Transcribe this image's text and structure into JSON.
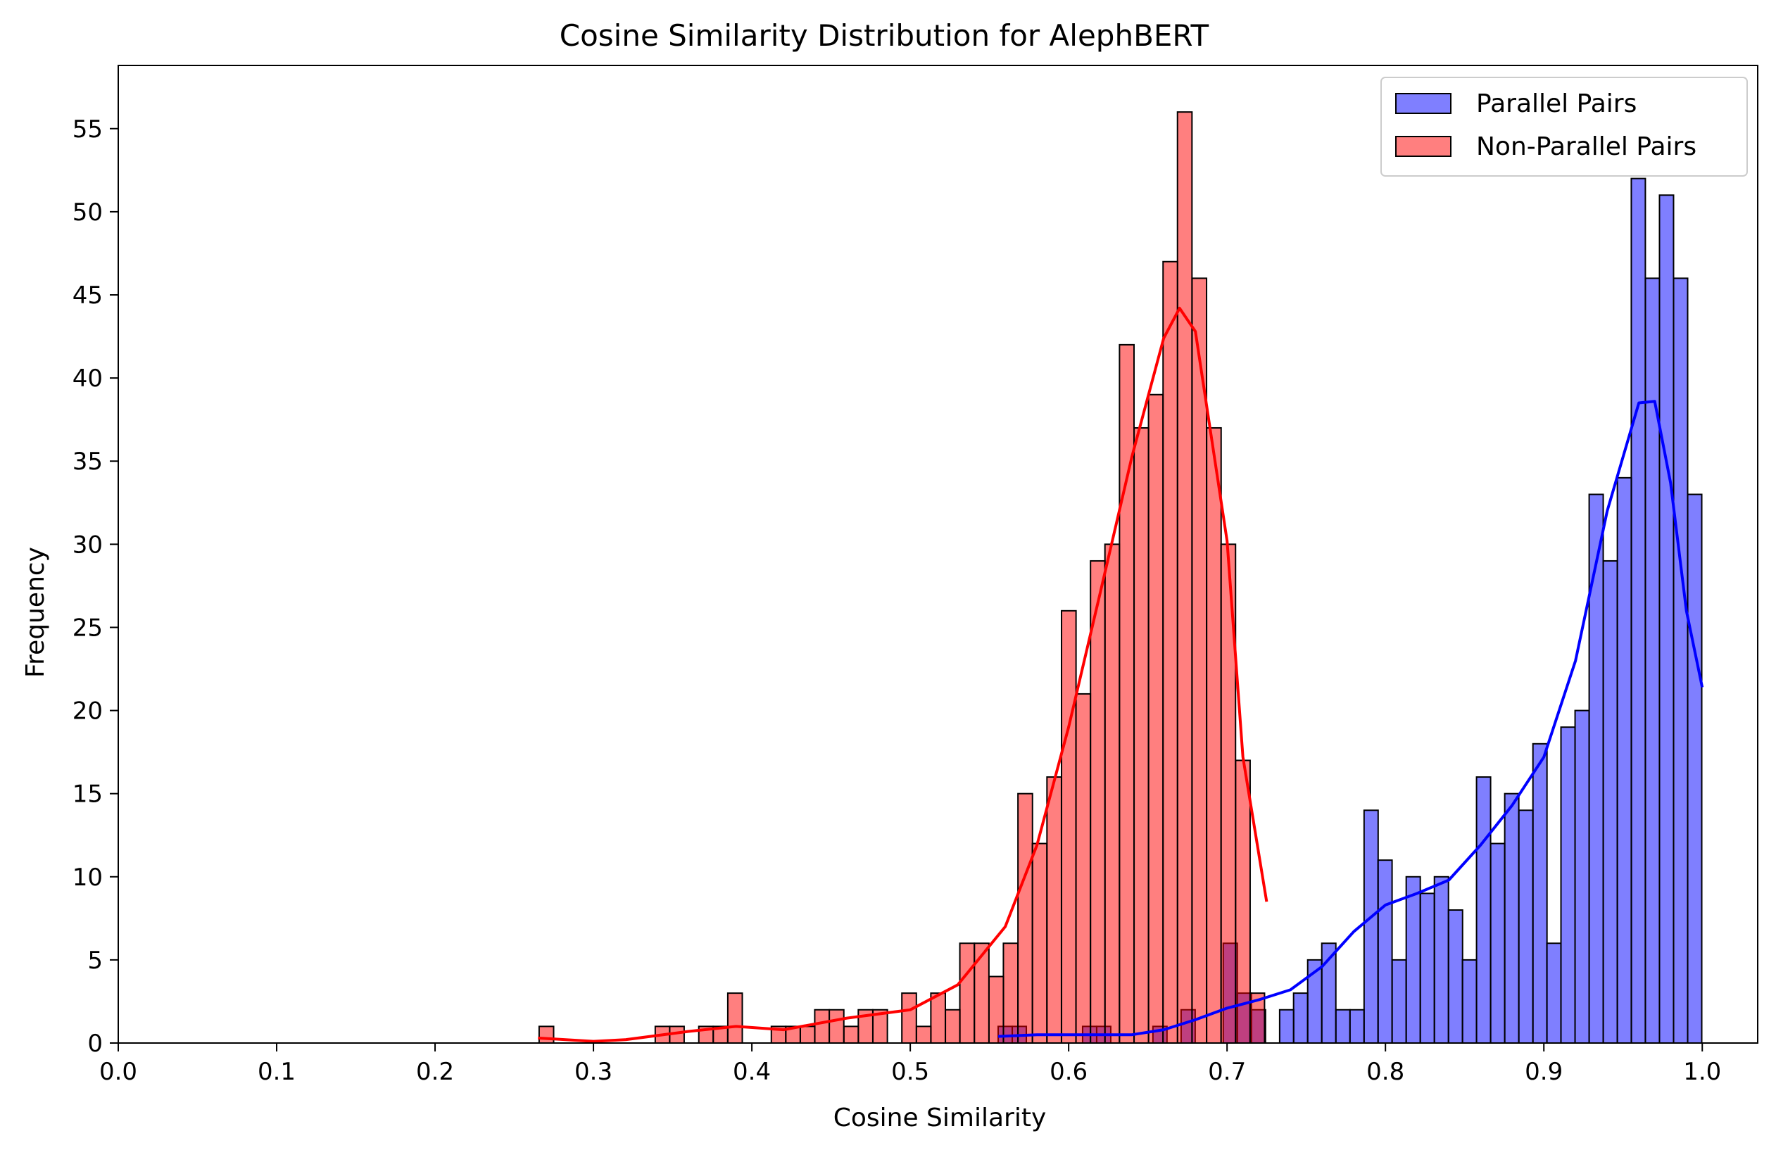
{
  "chart_data": {
    "type": "histogram",
    "title": "Cosine Similarity Distribution for AlephBERT",
    "xlabel": "Cosine Similarity",
    "ylabel": "Frequency",
    "xlim": [
      0.0,
      1.035
    ],
    "ylim": [
      0,
      58.8
    ],
    "xticks": [
      "0.0",
      "0.1",
      "0.2",
      "0.3",
      "0.4",
      "0.5",
      "0.6",
      "0.7",
      "0.8",
      "0.9",
      "1.0"
    ],
    "yticks": [
      "0",
      "5",
      "10",
      "15",
      "20",
      "25",
      "30",
      "35",
      "40",
      "45",
      "50",
      "55"
    ],
    "grid": false,
    "legend_position": "upper right",
    "series": [
      {
        "name": "Parallel Pairs",
        "color": "#0000ff",
        "bin_width": 0.00888,
        "bins_start": [
          0.5555,
          0.5644,
          0.5733,
          0.5821,
          0.591,
          0.5999,
          0.6088,
          0.6177,
          0.6266,
          0.6354,
          0.6443,
          0.6532,
          0.6621,
          0.671,
          0.6799,
          0.6887,
          0.6976,
          0.7065,
          0.7154,
          0.7243,
          0.7332,
          0.742,
          0.7509,
          0.7598,
          0.7687,
          0.7776,
          0.7865,
          0.7953,
          0.8042,
          0.8131,
          0.822,
          0.8309,
          0.8398,
          0.8486,
          0.8575,
          0.8664,
          0.8753,
          0.8842,
          0.8931,
          0.9019,
          0.9108,
          0.9197,
          0.9286,
          0.9375,
          0.9464,
          0.9552,
          0.9641,
          0.973,
          0.9819,
          0.9908
        ],
        "counts": [
          1,
          1,
          0,
          0,
          0,
          0,
          1,
          1,
          0,
          0,
          0,
          1,
          0,
          2,
          0,
          0,
          6,
          3,
          2,
          0,
          2,
          3,
          5,
          6,
          2,
          2,
          14,
          11,
          5,
          10,
          9,
          10,
          8,
          5,
          16,
          12,
          15,
          14,
          18,
          6,
          19,
          20,
          33,
          29,
          34,
          52,
          46,
          51,
          46,
          33
        ],
        "kde": [
          [
            0.5555,
            0.4
          ],
          [
            0.58,
            0.5
          ],
          [
            0.6,
            0.5
          ],
          [
            0.62,
            0.5
          ],
          [
            0.64,
            0.5
          ],
          [
            0.66,
            0.8
          ],
          [
            0.68,
            1.4
          ],
          [
            0.7,
            2.1
          ],
          [
            0.72,
            2.6
          ],
          [
            0.74,
            3.2
          ],
          [
            0.76,
            4.6
          ],
          [
            0.78,
            6.7
          ],
          [
            0.8,
            8.3
          ],
          [
            0.82,
            9.0
          ],
          [
            0.84,
            9.8
          ],
          [
            0.86,
            11.9
          ],
          [
            0.88,
            14.3
          ],
          [
            0.9,
            17.2
          ],
          [
            0.92,
            23.0
          ],
          [
            0.94,
            32.0
          ],
          [
            0.96,
            38.5
          ],
          [
            0.97,
            38.6
          ],
          [
            0.98,
            33.7
          ],
          [
            0.99,
            26.0
          ],
          [
            1.0,
            21.4
          ]
        ]
      },
      {
        "name": "Non-Parallel Pairs",
        "color": "#ff0000",
        "bin_width": 0.00916,
        "bins_start": [
          0.2657,
          0.2749,
          0.284,
          0.2932,
          0.3023,
          0.3115,
          0.3207,
          0.3298,
          0.339,
          0.3481,
          0.3573,
          0.3665,
          0.3756,
          0.3848,
          0.3939,
          0.4031,
          0.4123,
          0.4214,
          0.4306,
          0.4397,
          0.4489,
          0.4581,
          0.4672,
          0.4764,
          0.4855,
          0.4947,
          0.5039,
          0.513,
          0.5222,
          0.5313,
          0.5405,
          0.5497,
          0.5588,
          0.568,
          0.5771,
          0.5863,
          0.5955,
          0.6046,
          0.6138,
          0.6229,
          0.6321,
          0.6413,
          0.6504,
          0.6596,
          0.6687,
          0.6779,
          0.6871,
          0.6962,
          0.7054,
          0.7145
        ],
        "counts": [
          1,
          0,
          0,
          0,
          0,
          0,
          0,
          0,
          1,
          1,
          0,
          1,
          1,
          3,
          0,
          0,
          1,
          1,
          1,
          2,
          2,
          1,
          2,
          2,
          0,
          3,
          1,
          3,
          2,
          6,
          6,
          4,
          6,
          15,
          12,
          16,
          26,
          21,
          29,
          30,
          42,
          37,
          39,
          47,
          56,
          46,
          37,
          30,
          17,
          3
        ],
        "kde": [
          [
            0.265,
            0.3
          ],
          [
            0.3,
            0.1
          ],
          [
            0.32,
            0.2
          ],
          [
            0.36,
            0.7
          ],
          [
            0.39,
            1.0
          ],
          [
            0.42,
            0.8
          ],
          [
            0.46,
            1.5
          ],
          [
            0.5,
            2.0
          ],
          [
            0.53,
            3.5
          ],
          [
            0.56,
            7.0
          ],
          [
            0.58,
            11.9
          ],
          [
            0.6,
            19.0
          ],
          [
            0.62,
            27.1
          ],
          [
            0.64,
            35.3
          ],
          [
            0.66,
            42.4
          ],
          [
            0.67,
            44.2
          ],
          [
            0.68,
            42.8
          ],
          [
            0.7,
            30.2
          ],
          [
            0.71,
            17.2
          ],
          [
            0.725,
            8.5
          ]
        ]
      }
    ]
  }
}
